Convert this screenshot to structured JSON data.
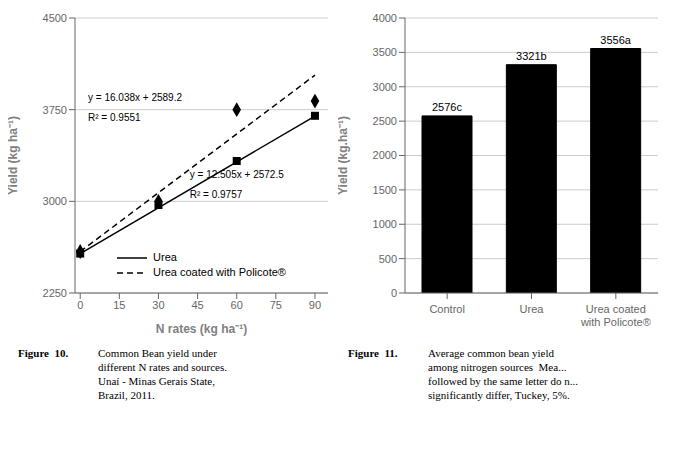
{
  "chart_data": [
    {
      "type": "scatter",
      "x": [
        0,
        30,
        60,
        90
      ],
      "series": [
        {
          "name": "Urea",
          "color": "#000000",
          "marker": "square",
          "line_style": "solid",
          "values": [
            2572.5,
            2970,
            3330,
            3700
          ],
          "fit": {
            "x": [
              0,
              90
            ],
            "values": [
              2572.5,
              3697.95
            ]
          }
        },
        {
          "name": "Urea coated with Policote®",
          "color": "#000000",
          "marker": "diamond",
          "line_style": "dashed",
          "values": [
            2589.2,
            3000,
            3750,
            3820
          ],
          "fit": {
            "x": [
              0,
              90
            ],
            "values": [
              2589.2,
              4032.62
            ]
          }
        }
      ],
      "annotations": [
        {
          "text": "y = 16.038x + 2589.2",
          "x": 3,
          "y": 3850
        },
        {
          "text": "R² = 0.9551",
          "x": 3,
          "y": 3690
        },
        {
          "text": "y = 12.505x + 2572.5",
          "x": 42,
          "y": 3220
        },
        {
          "text": "R² = 0.9757",
          "x": 42,
          "y": 3060
        }
      ],
      "xlabel": "N rates (kg ha⁻¹)",
      "ylabel": "Yield (kg ha⁻¹)",
      "xlim": [
        -2,
        95
      ],
      "ylim": [
        2250,
        4500
      ],
      "xticks": [
        0,
        15,
        30,
        45,
        60,
        75,
        90
      ],
      "yticks": [
        2250,
        3000,
        3750,
        4500
      ],
      "grid": true,
      "legend": "bottom",
      "caption": {
        "label": "Figure  10.",
        "text": "Common Bean yield under\ndifferent N rates and sources.\nUnaí - Minas Gerais State,\nBrazil, 2011."
      }
    },
    {
      "type": "bar",
      "categories": [
        "Control",
        "Urea",
        "Urea coated\nwith Policote®"
      ],
      "values": [
        2576,
        3321,
        3556
      ],
      "value_labels": [
        "2576c",
        "3321b",
        "3556a"
      ],
      "data_labels": true,
      "color": "#000000",
      "ylabel": "Yield (kg.ha⁻¹)",
      "ylim": [
        0,
        4000
      ],
      "yticks": [
        0,
        500,
        1000,
        1500,
        2000,
        2500,
        3000,
        3500,
        4000
      ],
      "grid": true,
      "caption": {
        "label": "Figure  11.",
        "text": "Average common bean yield\namong nitrogen sources  Mea...\nfollowed by the same letter do n...\nsignificantly differ, Tuckey, 5%."
      }
    }
  ]
}
